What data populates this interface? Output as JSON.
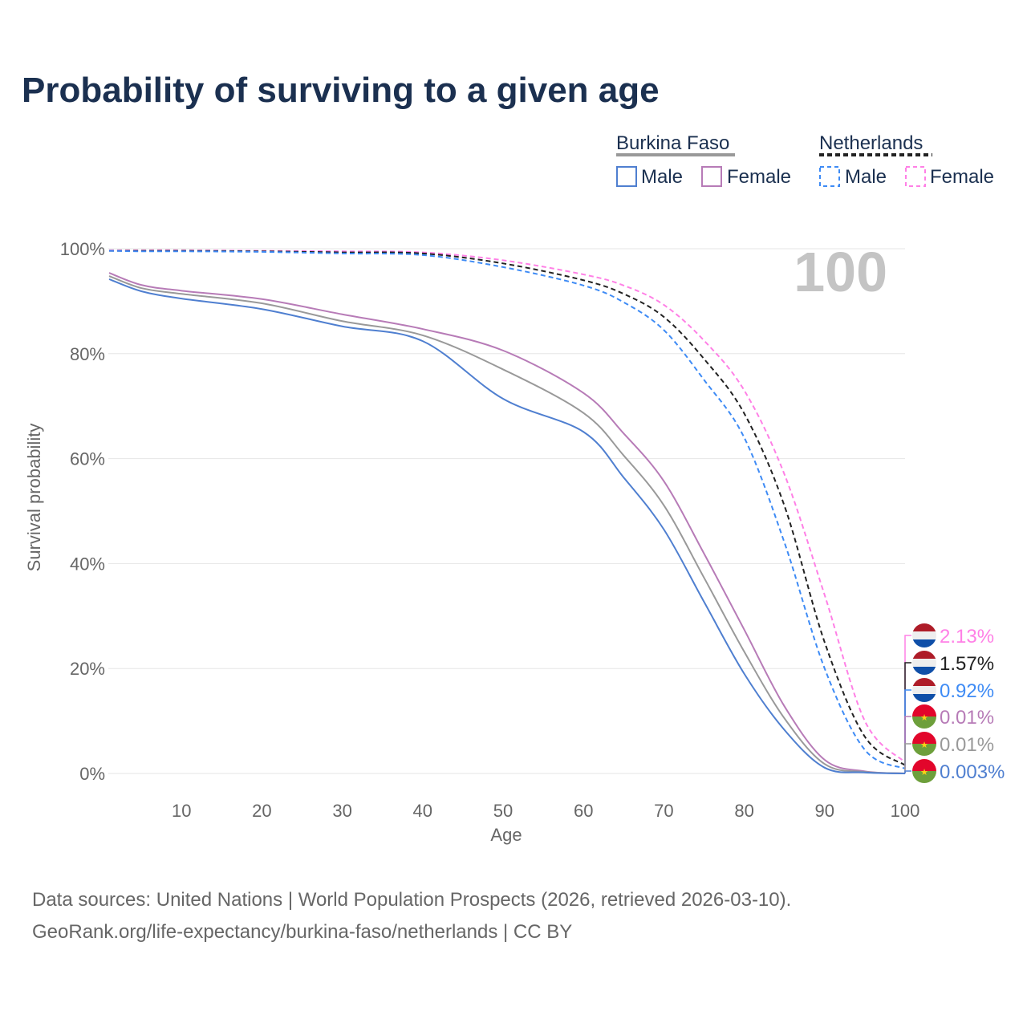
{
  "title": "Probability of surviving to a given age",
  "legend": {
    "groups": [
      {
        "name": "Burkina Faso",
        "items": [
          "Male",
          "Female"
        ]
      },
      {
        "name": "Netherlands",
        "items": [
          "Male",
          "Female"
        ]
      }
    ]
  },
  "year_badge": "100",
  "sources": [
    "Data sources: United Nations | World Population Prospects (2026, retrieved 2026-03-10).",
    "GeoRank.org/life-expectancy/burkina-faso/netherlands | CC BY"
  ],
  "chart_data": {
    "type": "line",
    "title": "Probability of surviving to a given age",
    "xlabel": "Age",
    "ylabel": "Survival probability",
    "xlim": [
      0,
      100
    ],
    "ylim": [
      0,
      100
    ],
    "xticks": [
      10,
      20,
      30,
      40,
      50,
      60,
      70,
      80,
      90,
      100
    ],
    "yticks": [
      0,
      20,
      40,
      60,
      80,
      100
    ],
    "ytick_labels": [
      "0%",
      "20%",
      "40%",
      "60%",
      "80%",
      "100%"
    ],
    "grid": true,
    "x": [
      1,
      5,
      10,
      20,
      30,
      40,
      50,
      60,
      65,
      70,
      75,
      80,
      85,
      90,
      95,
      100
    ],
    "series": [
      {
        "name": "Netherlands Female",
        "color": "#ff80e6",
        "dash": true,
        "end_label": "2.13%",
        "flag": "nl",
        "values": [
          99.7,
          99.7,
          99.7,
          99.6,
          99.5,
          99.3,
          97.8,
          95.1,
          93.0,
          89.3,
          82.5,
          73.0,
          57.0,
          34.0,
          10.0,
          2.13
        ]
      },
      {
        "name": "Netherlands Total",
        "color": "#222222",
        "dash": true,
        "end_label": "1.57%",
        "flag": "nl",
        "values": [
          99.6,
          99.6,
          99.6,
          99.5,
          99.3,
          99.1,
          97.2,
          94.0,
          91.4,
          87.0,
          79.0,
          68.6,
          51.0,
          25.0,
          7.0,
          1.57
        ]
      },
      {
        "name": "Netherlands Male",
        "color": "#3e8bf5",
        "dash": true,
        "end_label": "0.92%",
        "flag": "nl",
        "values": [
          99.6,
          99.5,
          99.5,
          99.4,
          99.1,
          98.8,
          96.5,
          93.0,
          89.8,
          84.5,
          75.0,
          64.0,
          44.0,
          20.0,
          4.5,
          0.92
        ]
      },
      {
        "name": "Burkina Faso Female",
        "color": "#b77bb7",
        "dash": false,
        "end_label": "0.01%",
        "flag": "bf",
        "values": [
          95.4,
          93.1,
          92.0,
          90.4,
          87.5,
          84.7,
          80.6,
          72.5,
          64.8,
          55.7,
          41.9,
          27.4,
          12.8,
          2.6,
          0.4,
          0.01
        ]
      },
      {
        "name": "Burkina Faso Total",
        "color": "#999999",
        "dash": false,
        "end_label": "0.01%",
        "flag": "bf",
        "values": [
          94.8,
          92.5,
          91.4,
          89.6,
          86.2,
          83.5,
          77.0,
          68.7,
          60.6,
          51.1,
          37.3,
          23.2,
          10.5,
          1.8,
          0.3,
          0.01
        ]
      },
      {
        "name": "Burkina Faso Male",
        "color": "#4f7fd0",
        "dash": false,
        "end_label": "0.003%",
        "flag": "bf",
        "values": [
          94.2,
          91.9,
          90.5,
          88.5,
          85.2,
          82.4,
          71.4,
          65.1,
          56.4,
          46.5,
          32.7,
          19.0,
          8.3,
          1.1,
          0.2,
          0.003
        ]
      }
    ]
  }
}
